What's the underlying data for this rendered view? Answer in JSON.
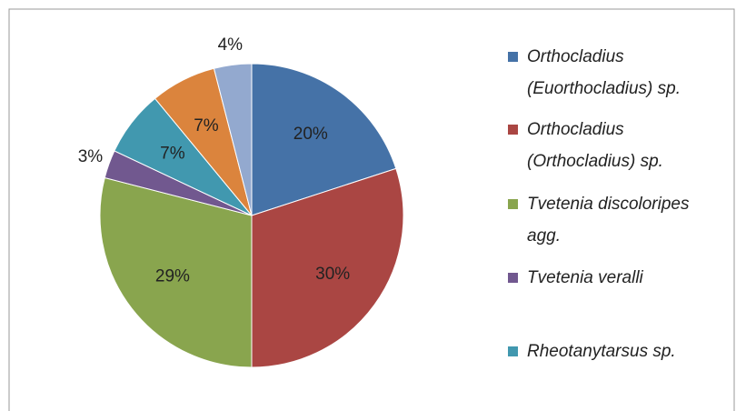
{
  "chart_data": {
    "type": "pie",
    "categories": [
      "Orthocladius (Euorthocladius) sp.",
      "Orthocladius (Orthocladius) sp.",
      "Tvetenia discoloripes agg.",
      "Tvetenia veralli",
      "Rheotanytarsus sp.",
      null,
      null
    ],
    "values": [
      20,
      30,
      29,
      3,
      7,
      7,
      4
    ],
    "value_labels": [
      "20%",
      "30%",
      "29%",
      "3%",
      "7%",
      "7%",
      "4%"
    ],
    "colors": [
      "#4572a7",
      "#aa4643",
      "#89a54e",
      "#71588f",
      "#4198af",
      "#db843d",
      "#93a9cf"
    ],
    "legend": "right"
  }
}
